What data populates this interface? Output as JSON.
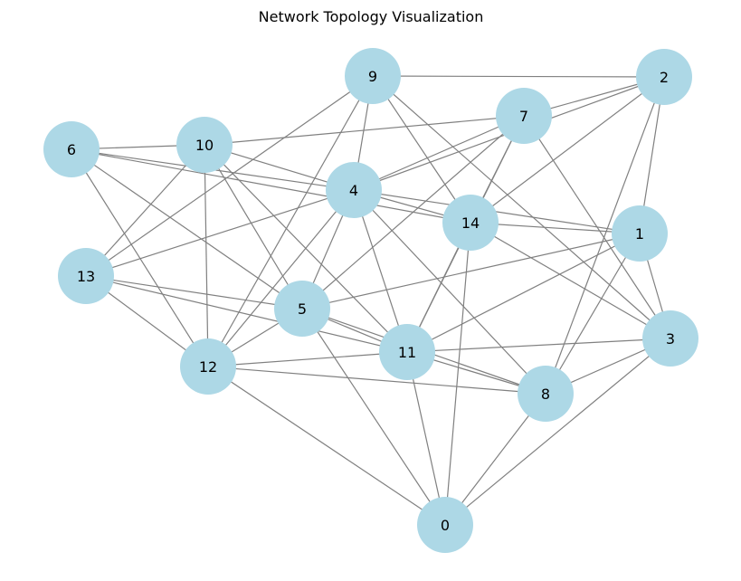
{
  "diagram": {
    "title": "Network Topology Visualization",
    "node_color": "#add8e6",
    "edge_color": "#808080",
    "nodes": [
      "0",
      "1",
      "2",
      "3",
      "4",
      "5",
      "6",
      "7",
      "8",
      "9",
      "10",
      "11",
      "12",
      "13",
      "14"
    ],
    "edges": [
      [
        "9",
        "2"
      ],
      [
        "9",
        "4"
      ],
      [
        "9",
        "14"
      ],
      [
        "9",
        "3"
      ],
      [
        "9",
        "13"
      ],
      [
        "9",
        "12"
      ],
      [
        "2",
        "7"
      ],
      [
        "2",
        "4"
      ],
      [
        "2",
        "14"
      ],
      [
        "2",
        "1"
      ],
      [
        "2",
        "8"
      ],
      [
        "7",
        "10"
      ],
      [
        "7",
        "4"
      ],
      [
        "7",
        "14"
      ],
      [
        "7",
        "11"
      ],
      [
        "7",
        "5"
      ],
      [
        "7",
        "3"
      ],
      [
        "6",
        "10"
      ],
      [
        "6",
        "4"
      ],
      [
        "6",
        "14"
      ],
      [
        "6",
        "5"
      ],
      [
        "6",
        "12"
      ],
      [
        "10",
        "4"
      ],
      [
        "10",
        "13"
      ],
      [
        "10",
        "12"
      ],
      [
        "10",
        "5"
      ],
      [
        "10",
        "11"
      ],
      [
        "4",
        "14"
      ],
      [
        "4",
        "1"
      ],
      [
        "4",
        "13"
      ],
      [
        "4",
        "5"
      ],
      [
        "4",
        "12"
      ],
      [
        "4",
        "11"
      ],
      [
        "4",
        "8"
      ],
      [
        "14",
        "1"
      ],
      [
        "14",
        "3"
      ],
      [
        "14",
        "0"
      ],
      [
        "14",
        "11"
      ],
      [
        "1",
        "3"
      ],
      [
        "1",
        "5"
      ],
      [
        "1",
        "11"
      ],
      [
        "1",
        "8"
      ],
      [
        "13",
        "5"
      ],
      [
        "13",
        "11"
      ],
      [
        "13",
        "12"
      ],
      [
        "5",
        "12"
      ],
      [
        "5",
        "11"
      ],
      [
        "5",
        "8"
      ],
      [
        "5",
        "0"
      ],
      [
        "11",
        "3"
      ],
      [
        "11",
        "12"
      ],
      [
        "11",
        "8"
      ],
      [
        "11",
        "0"
      ],
      [
        "12",
        "8"
      ],
      [
        "12",
        "0"
      ],
      [
        "3",
        "8"
      ],
      [
        "3",
        "0"
      ],
      [
        "8",
        "0"
      ]
    ]
  }
}
